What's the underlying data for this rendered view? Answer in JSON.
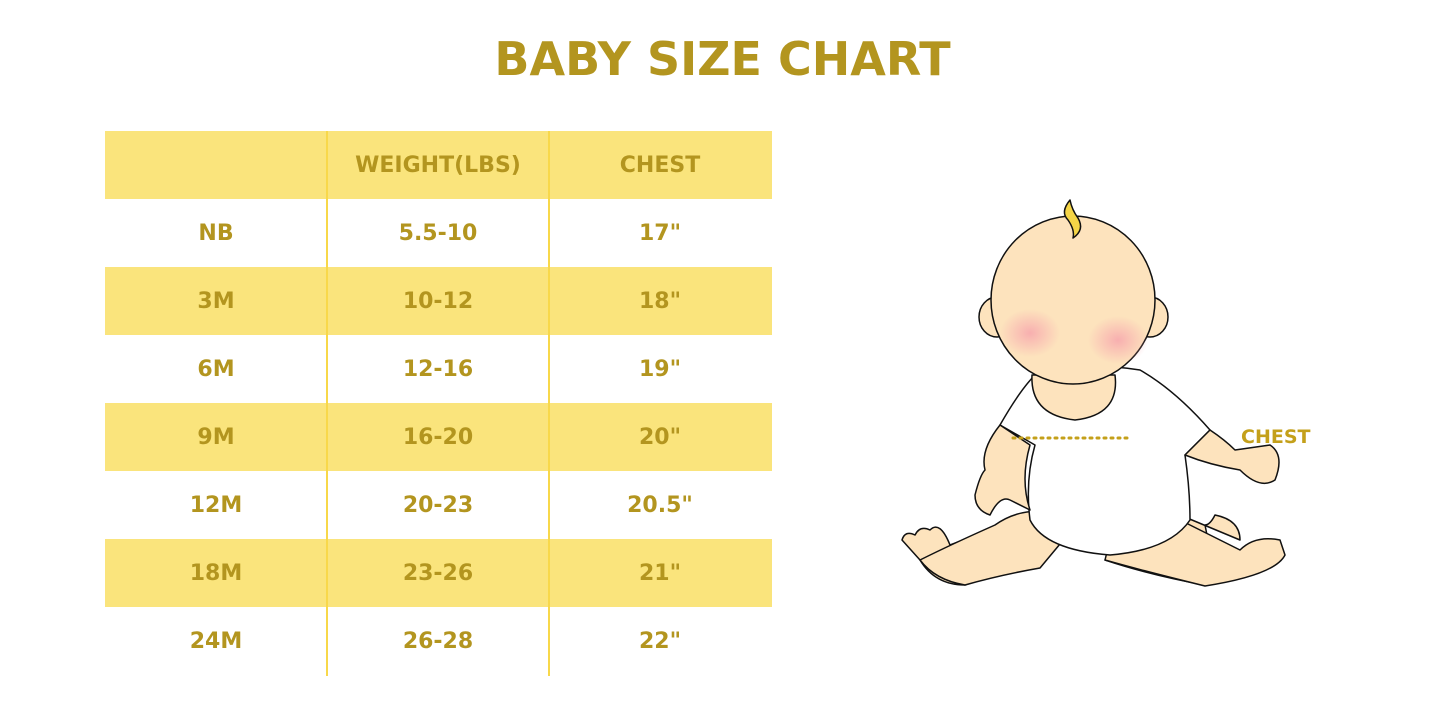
{
  "title": "BABY SIZE CHART",
  "table": {
    "headers": [
      "",
      "WEIGHT(LBS)",
      "CHEST"
    ],
    "rows": [
      [
        "NB",
        "5.5-10",
        "17\""
      ],
      [
        "3M",
        "10-12",
        "18\""
      ],
      [
        "6M",
        "12-16",
        "19\""
      ],
      [
        "9M",
        "16-20",
        "20\""
      ],
      [
        "12M",
        "20-23",
        "20.5\""
      ],
      [
        "18M",
        "23-26",
        "21\""
      ],
      [
        "24M",
        "26-28",
        "22\""
      ]
    ]
  },
  "illustration": {
    "icon": "sitting-baby-illustration",
    "chest_label": "CHEST"
  },
  "colors": {
    "accent_text": "#B3951F",
    "row_shade": "#FAE47C",
    "skin": "#FDE3BD"
  }
}
